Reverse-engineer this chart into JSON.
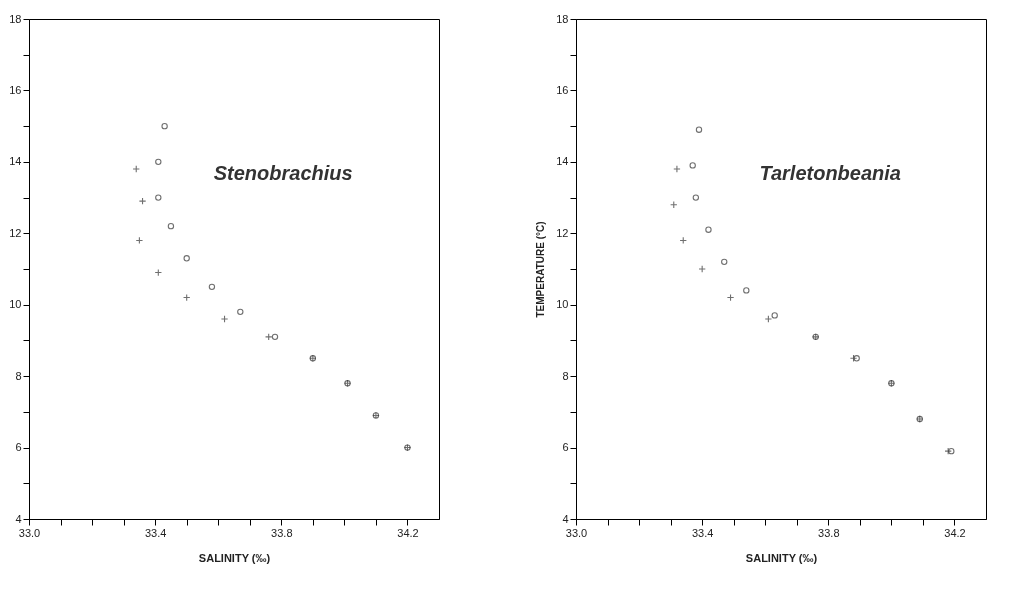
{
  "chart_data": [
    {
      "type": "scatter",
      "xlabel": "SALINITY (‰)",
      "annotations": [
        "Stenobrachius"
      ],
      "xlim": [
        33.0,
        34.3
      ],
      "ylim": [
        4,
        18
      ],
      "xticks": [
        {
          "value": 33,
          "label": "33.0"
        },
        {
          "value": 33.1,
          "label": null
        },
        {
          "value": 33.2,
          "label": null
        },
        {
          "value": 33.3,
          "label": null
        },
        33.4,
        {
          "value": 33.5,
          "label": null
        },
        {
          "value": 33.6,
          "label": null
        },
        {
          "value": 33.7,
          "label": null
        },
        33.8,
        {
          "value": 33.9,
          "label": null
        },
        {
          "value": 34.0,
          "label": null
        },
        {
          "value": 34.1,
          "label": null
        },
        34.2
      ],
      "yticks": [
        4,
        {
          "value": 5,
          "label": null
        },
        6,
        {
          "value": 7,
          "label": null
        },
        8,
        {
          "value": 9,
          "label": null
        },
        10,
        {
          "value": 11,
          "label": null
        },
        12,
        {
          "value": 13,
          "label": null
        },
        14,
        {
          "value": 15,
          "label": null
        },
        16,
        {
          "value": 17,
          "label": null
        },
        18
      ],
      "series": [
        {
          "color": "#333333",
          "marker": "circle",
          "x": [
            33.43,
            33.41,
            33.41,
            33.45,
            33.5,
            33.58,
            33.67,
            33.78,
            33.9,
            34.01,
            34.1,
            34.2
          ],
          "values": [
            15.0,
            14.0,
            13.0,
            12.2,
            11.3,
            10.5,
            9.8,
            9.1,
            8.5,
            7.8,
            6.9,
            6.0
          ]
        },
        {
          "color": "#333333",
          "marker": "cross",
          "x": [
            33.34,
            33.36,
            33.35,
            33.41,
            33.5,
            33.62,
            33.76,
            33.9,
            34.01,
            34.1,
            34.2
          ],
          "values": [
            13.8,
            12.9,
            11.8,
            10.9,
            10.2,
            9.6,
            9.1,
            8.5,
            7.8,
            6.9,
            6.0
          ]
        }
      ]
    },
    {
      "type": "scatter",
      "xlabel": "SALINITY (‰)",
      "ylabel": "TEMPERATURE (°C)",
      "annotations": [
        "Tarletonbeania"
      ],
      "xlim": [
        33.0,
        34.3
      ],
      "ylim": [
        4,
        18
      ],
      "xticks": [
        {
          "value": 33,
          "label": "33.0"
        },
        {
          "value": 33.1,
          "label": null
        },
        {
          "value": 33.2,
          "label": null
        },
        {
          "value": 33.3,
          "label": null
        },
        33.4,
        {
          "value": 33.5,
          "label": null
        },
        {
          "value": 33.6,
          "label": null
        },
        {
          "value": 33.7,
          "label": null
        },
        33.8,
        {
          "value": 33.9,
          "label": null
        },
        {
          "value": 34.0,
          "label": null
        },
        {
          "value": 34.1,
          "label": null
        },
        34.2
      ],
      "yticks": [
        4,
        {
          "value": 5,
          "label": null
        },
        6,
        {
          "value": 7,
          "label": null
        },
        8,
        {
          "value": 9,
          "label": null
        },
        10,
        {
          "value": 11,
          "label": null
        },
        12,
        {
          "value": 13,
          "label": null
        },
        14,
        {
          "value": 15,
          "label": null
        },
        16,
        {
          "value": 17,
          "label": null
        },
        18
      ],
      "series": [
        {
          "color": "#333333",
          "marker": "circle",
          "x": [
            33.39,
            33.37,
            33.38,
            33.42,
            33.47,
            33.54,
            33.63,
            33.76,
            33.89,
            34.0,
            34.09,
            34.19
          ],
          "values": [
            14.9,
            13.9,
            13.0,
            12.1,
            11.2,
            10.4,
            9.7,
            9.1,
            8.5,
            7.8,
            6.8,
            5.9
          ]
        },
        {
          "color": "#333333",
          "marker": "cross",
          "x": [
            33.32,
            33.31,
            33.34,
            33.4,
            33.49,
            33.61,
            33.76,
            33.88,
            34.0,
            34.09,
            34.18
          ],
          "values": [
            13.8,
            12.8,
            11.8,
            11.0,
            10.2,
            9.6,
            9.1,
            8.5,
            7.8,
            6.8,
            5.9
          ]
        }
      ]
    }
  ]
}
